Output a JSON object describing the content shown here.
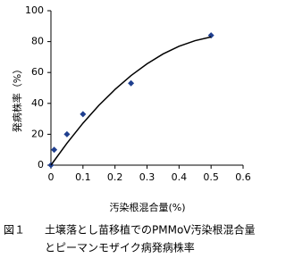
{
  "chart_data": {
    "type": "scatter",
    "x_label": "汚染根混合量(%)",
    "y_label": "発病株率（%）",
    "caption": {
      "number": "図１",
      "lines": [
        "土壌落とし苗移植でのPMMoV汚染根混合量",
        "とピーマンモザイク病発病株率"
      ]
    },
    "series": [
      {
        "color": "#1f3f8f",
        "marker": "diamond",
        "x": [
          0,
          0.01,
          0.05,
          0.1,
          0.25,
          0.5
        ],
        "values": [
          0,
          10,
          20,
          33,
          53,
          84
        ]
      },
      {
        "color": "#000000",
        "marker": "none",
        "x": [
          0,
          0.05,
          0.1,
          0.15,
          0.2,
          0.25,
          0.3,
          0.35,
          0.4,
          0.45,
          0.5
        ],
        "values": [
          0,
          14.2,
          27.2,
          38.8,
          49,
          58,
          65.6,
          72,
          77,
          80.6,
          83
        ]
      }
    ],
    "xlim": [
      0,
      0.6
    ],
    "xticks": [
      0,
      0.1,
      0.2,
      0.3,
      0.4,
      0.5,
      0.6
    ],
    "ylim": [
      0,
      100
    ],
    "yticks": [
      0,
      20,
      40,
      60,
      80,
      100
    ],
    "grid": false
  }
}
